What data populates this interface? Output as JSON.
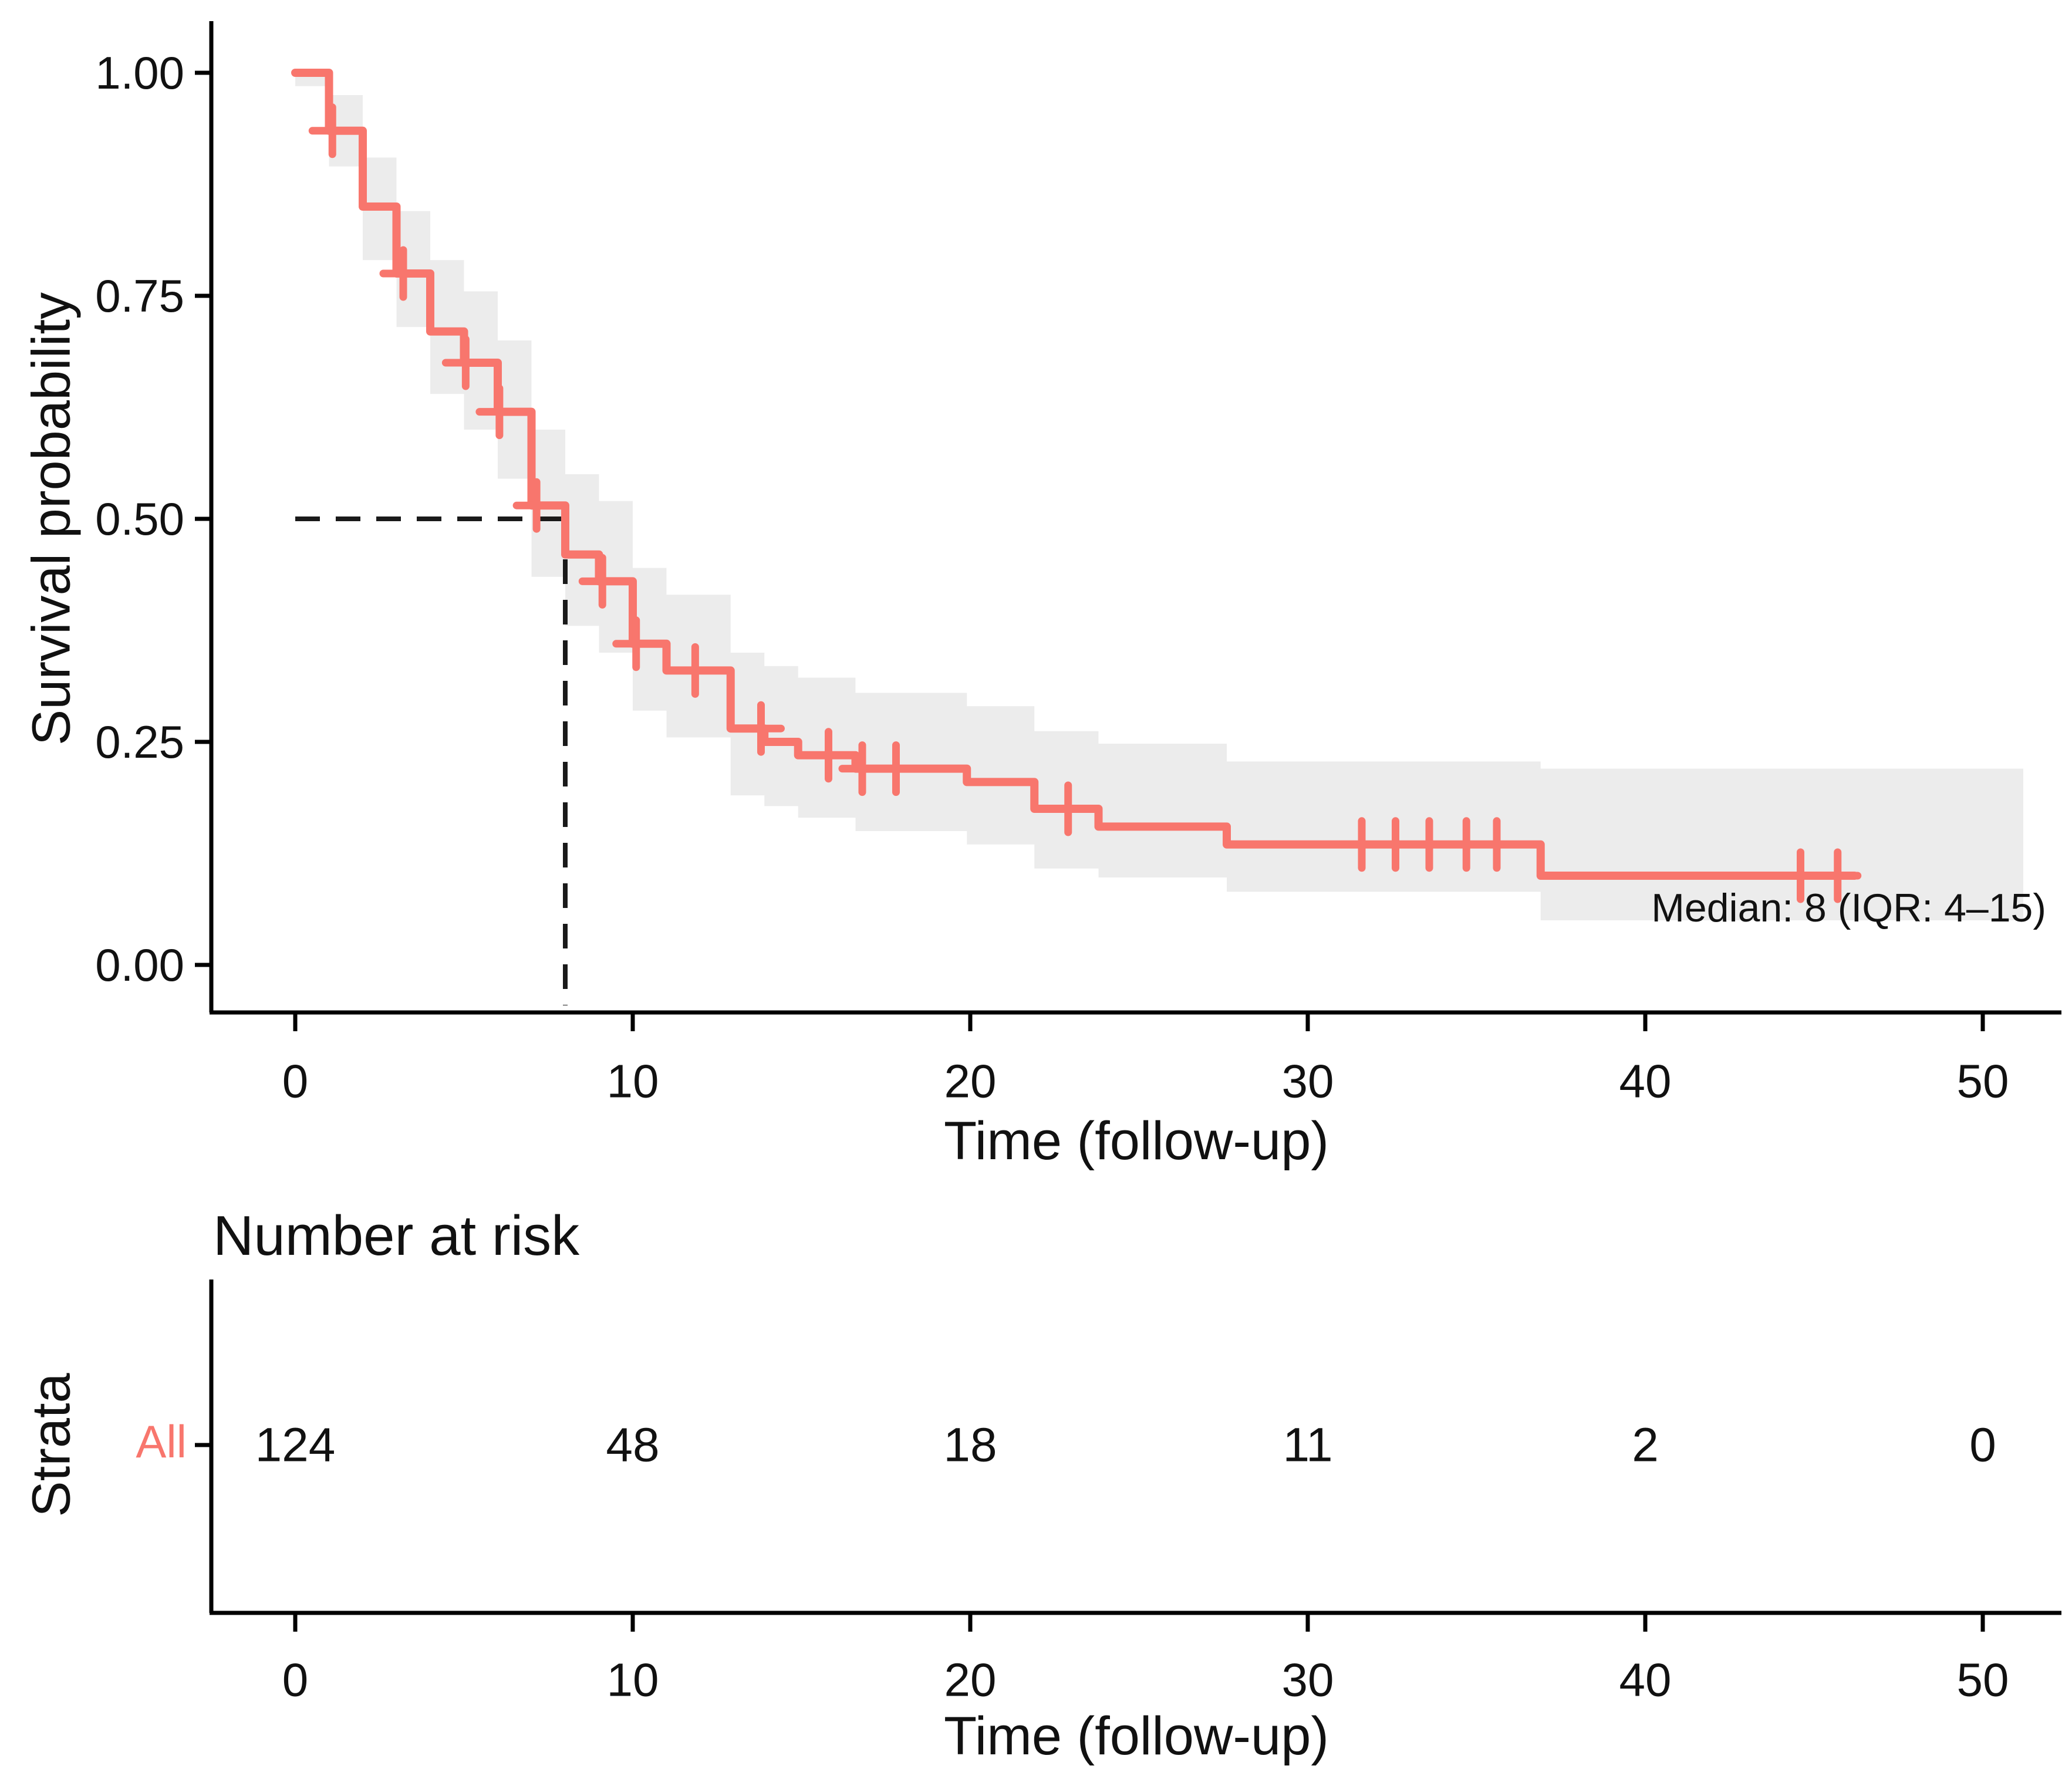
{
  "figure": {
    "background": "#ffffff",
    "accent_color": "#F8766D",
    "ci_fill": "rgba(0,0,0,0.075)",
    "axis_color": "#000000",
    "text_color": "#111111",
    "dashed_line_color": "#1a1a1a"
  },
  "main_plot": {
    "y_axis_title": "Survival probability",
    "x_axis_title": "Time (follow-up)",
    "median_annotation": "Median: 8  (IQR: 4–15)",
    "y_tick_labels": [
      "1.00",
      "0.75",
      "0.50",
      "0.25",
      "0.00"
    ],
    "x_tick_labels": [
      "0",
      "10",
      "20",
      "30",
      "40",
      "50"
    ]
  },
  "risk_table": {
    "title": "Number at risk",
    "strata_axis_title": "Strata",
    "row_label": "All",
    "x_axis_title": "Time (follow-up)",
    "x_tick_labels": [
      "0",
      "10",
      "20",
      "30",
      "40",
      "50"
    ],
    "values": [
      "124",
      "48",
      "18",
      "11",
      "2",
      "0"
    ]
  },
  "chart_data": {
    "type": "line",
    "subtype": "kaplan-meier-step",
    "xlabel": "Time (follow-up)",
    "ylabel": "Survival probability",
    "x_range": [
      0,
      50
    ],
    "y_range": [
      0.0,
      1.0
    ],
    "x_tick_values": [
      0,
      10,
      20,
      30,
      40,
      50
    ],
    "y_tick_values": [
      1.0,
      0.75,
      0.5,
      0.25,
      0.0
    ],
    "grid": "off",
    "legend": "none",
    "median_survival": 8,
    "iqr": [
      4,
      15
    ],
    "median_guides": {
      "h_y": 0.5,
      "h_x0": 0,
      "h_x1": 8,
      "v_x": 8,
      "v_y0": 0,
      "v_y1": 0.5
    },
    "survival_steps": [
      [
        0,
        1.0
      ],
      [
        1,
        0.935
      ],
      [
        2,
        0.85
      ],
      [
        3,
        0.775
      ],
      [
        4,
        0.71
      ],
      [
        5,
        0.675
      ],
      [
        6,
        0.62
      ],
      [
        7,
        0.515
      ],
      [
        8,
        0.46
      ],
      [
        9,
        0.43
      ],
      [
        10,
        0.36
      ],
      [
        11,
        0.33
      ],
      [
        12.9,
        0.265
      ],
      [
        13.9,
        0.25
      ],
      [
        14.9,
        0.235
      ],
      [
        16.6,
        0.22
      ],
      [
        19.9,
        0.205
      ],
      [
        21.9,
        0.175
      ],
      [
        23.8,
        0.155
      ],
      [
        27.6,
        0.135
      ],
      [
        36.9,
        0.1
      ],
      [
        46.2,
        0.1
      ]
    ],
    "censor_marks": [
      [
        1.1,
        0.935
      ],
      [
        3.2,
        0.775
      ],
      [
        5.05,
        0.675
      ],
      [
        6.05,
        0.62
      ],
      [
        7.15,
        0.515
      ],
      [
        9.1,
        0.43
      ],
      [
        10.1,
        0.36
      ],
      [
        11.85,
        0.33
      ],
      [
        13.8,
        0.265
      ],
      [
        15.8,
        0.235
      ],
      [
        16.8,
        0.22
      ],
      [
        17.8,
        0.22
      ],
      [
        22.9,
        0.175
      ],
      [
        31.6,
        0.135
      ],
      [
        32.6,
        0.135
      ],
      [
        33.6,
        0.135
      ],
      [
        34.7,
        0.135
      ],
      [
        35.6,
        0.135
      ],
      [
        44.6,
        0.1
      ],
      [
        45.7,
        0.1
      ]
    ],
    "confidence_band": [
      [
        0,
        1,
        0.985,
        1.0
      ],
      [
        1,
        2,
        0.895,
        0.975
      ],
      [
        2,
        3,
        0.79,
        0.905
      ],
      [
        3,
        4,
        0.715,
        0.845
      ],
      [
        4,
        5,
        0.64,
        0.79
      ],
      [
        5,
        6,
        0.6,
        0.755
      ],
      [
        6,
        7,
        0.545,
        0.7
      ],
      [
        7,
        8,
        0.435,
        0.6
      ],
      [
        8,
        9,
        0.38,
        0.55
      ],
      [
        9,
        10,
        0.35,
        0.52
      ],
      [
        10,
        11,
        0.285,
        0.445
      ],
      [
        11,
        12.9,
        0.255,
        0.415
      ],
      [
        12.9,
        13.9,
        0.19,
        0.35
      ],
      [
        13.9,
        14.9,
        0.178,
        0.335
      ],
      [
        14.9,
        16.6,
        0.165,
        0.322
      ],
      [
        16.6,
        19.9,
        0.15,
        0.305
      ],
      [
        19.9,
        21.9,
        0.135,
        0.29
      ],
      [
        21.9,
        23.8,
        0.108,
        0.262
      ],
      [
        23.8,
        27.6,
        0.098,
        0.248
      ],
      [
        27.6,
        36.9,
        0.082,
        0.228
      ],
      [
        36.9,
        51.2,
        0.05,
        0.22
      ]
    ],
    "number_at_risk": {
      "strata": "All",
      "times": [
        0,
        10,
        20,
        30,
        40,
        50
      ],
      "values": [
        124,
        48,
        18,
        11,
        2,
        0
      ]
    }
  }
}
